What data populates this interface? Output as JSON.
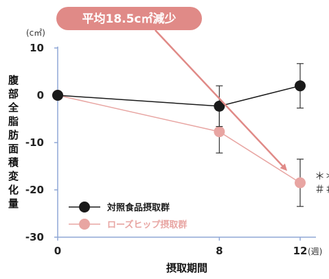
{
  "chart_data": {
    "type": "line",
    "title": "",
    "xlabel": "摂取期間",
    "x_unit": "(週)",
    "ylabel": "腹部全脂肪面積変化量",
    "y_unit": "(c㎡)",
    "x": [
      0,
      8,
      12
    ],
    "x_tick_labels": [
      "0",
      "8",
      "12"
    ],
    "y_ticks": [
      10,
      0,
      -10,
      -20,
      -30
    ],
    "y_tick_labels": [
      "10",
      "0",
      "-10",
      "-20",
      "-30"
    ],
    "ylim": [
      -30,
      10
    ],
    "grid": false,
    "legend_position": "bottom-left",
    "series": [
      {
        "name": "対照食品摂取群",
        "color": "#1a1a1a",
        "values": [
          0,
          -2.3,
          2.0
        ],
        "error": [
          0,
          4.3,
          4.7
        ]
      },
      {
        "name": "ローズヒップ摂取群",
        "color": "#e8a5a2",
        "values": [
          0,
          -7.7,
          -18.5
        ],
        "error": [
          0,
          4.5,
          5.0
        ]
      }
    ],
    "annotation": {
      "text": "平均18.5c㎡減少",
      "color": "#e08a87"
    },
    "significance_marks": [
      "＊＊",
      "＃＃"
    ]
  }
}
